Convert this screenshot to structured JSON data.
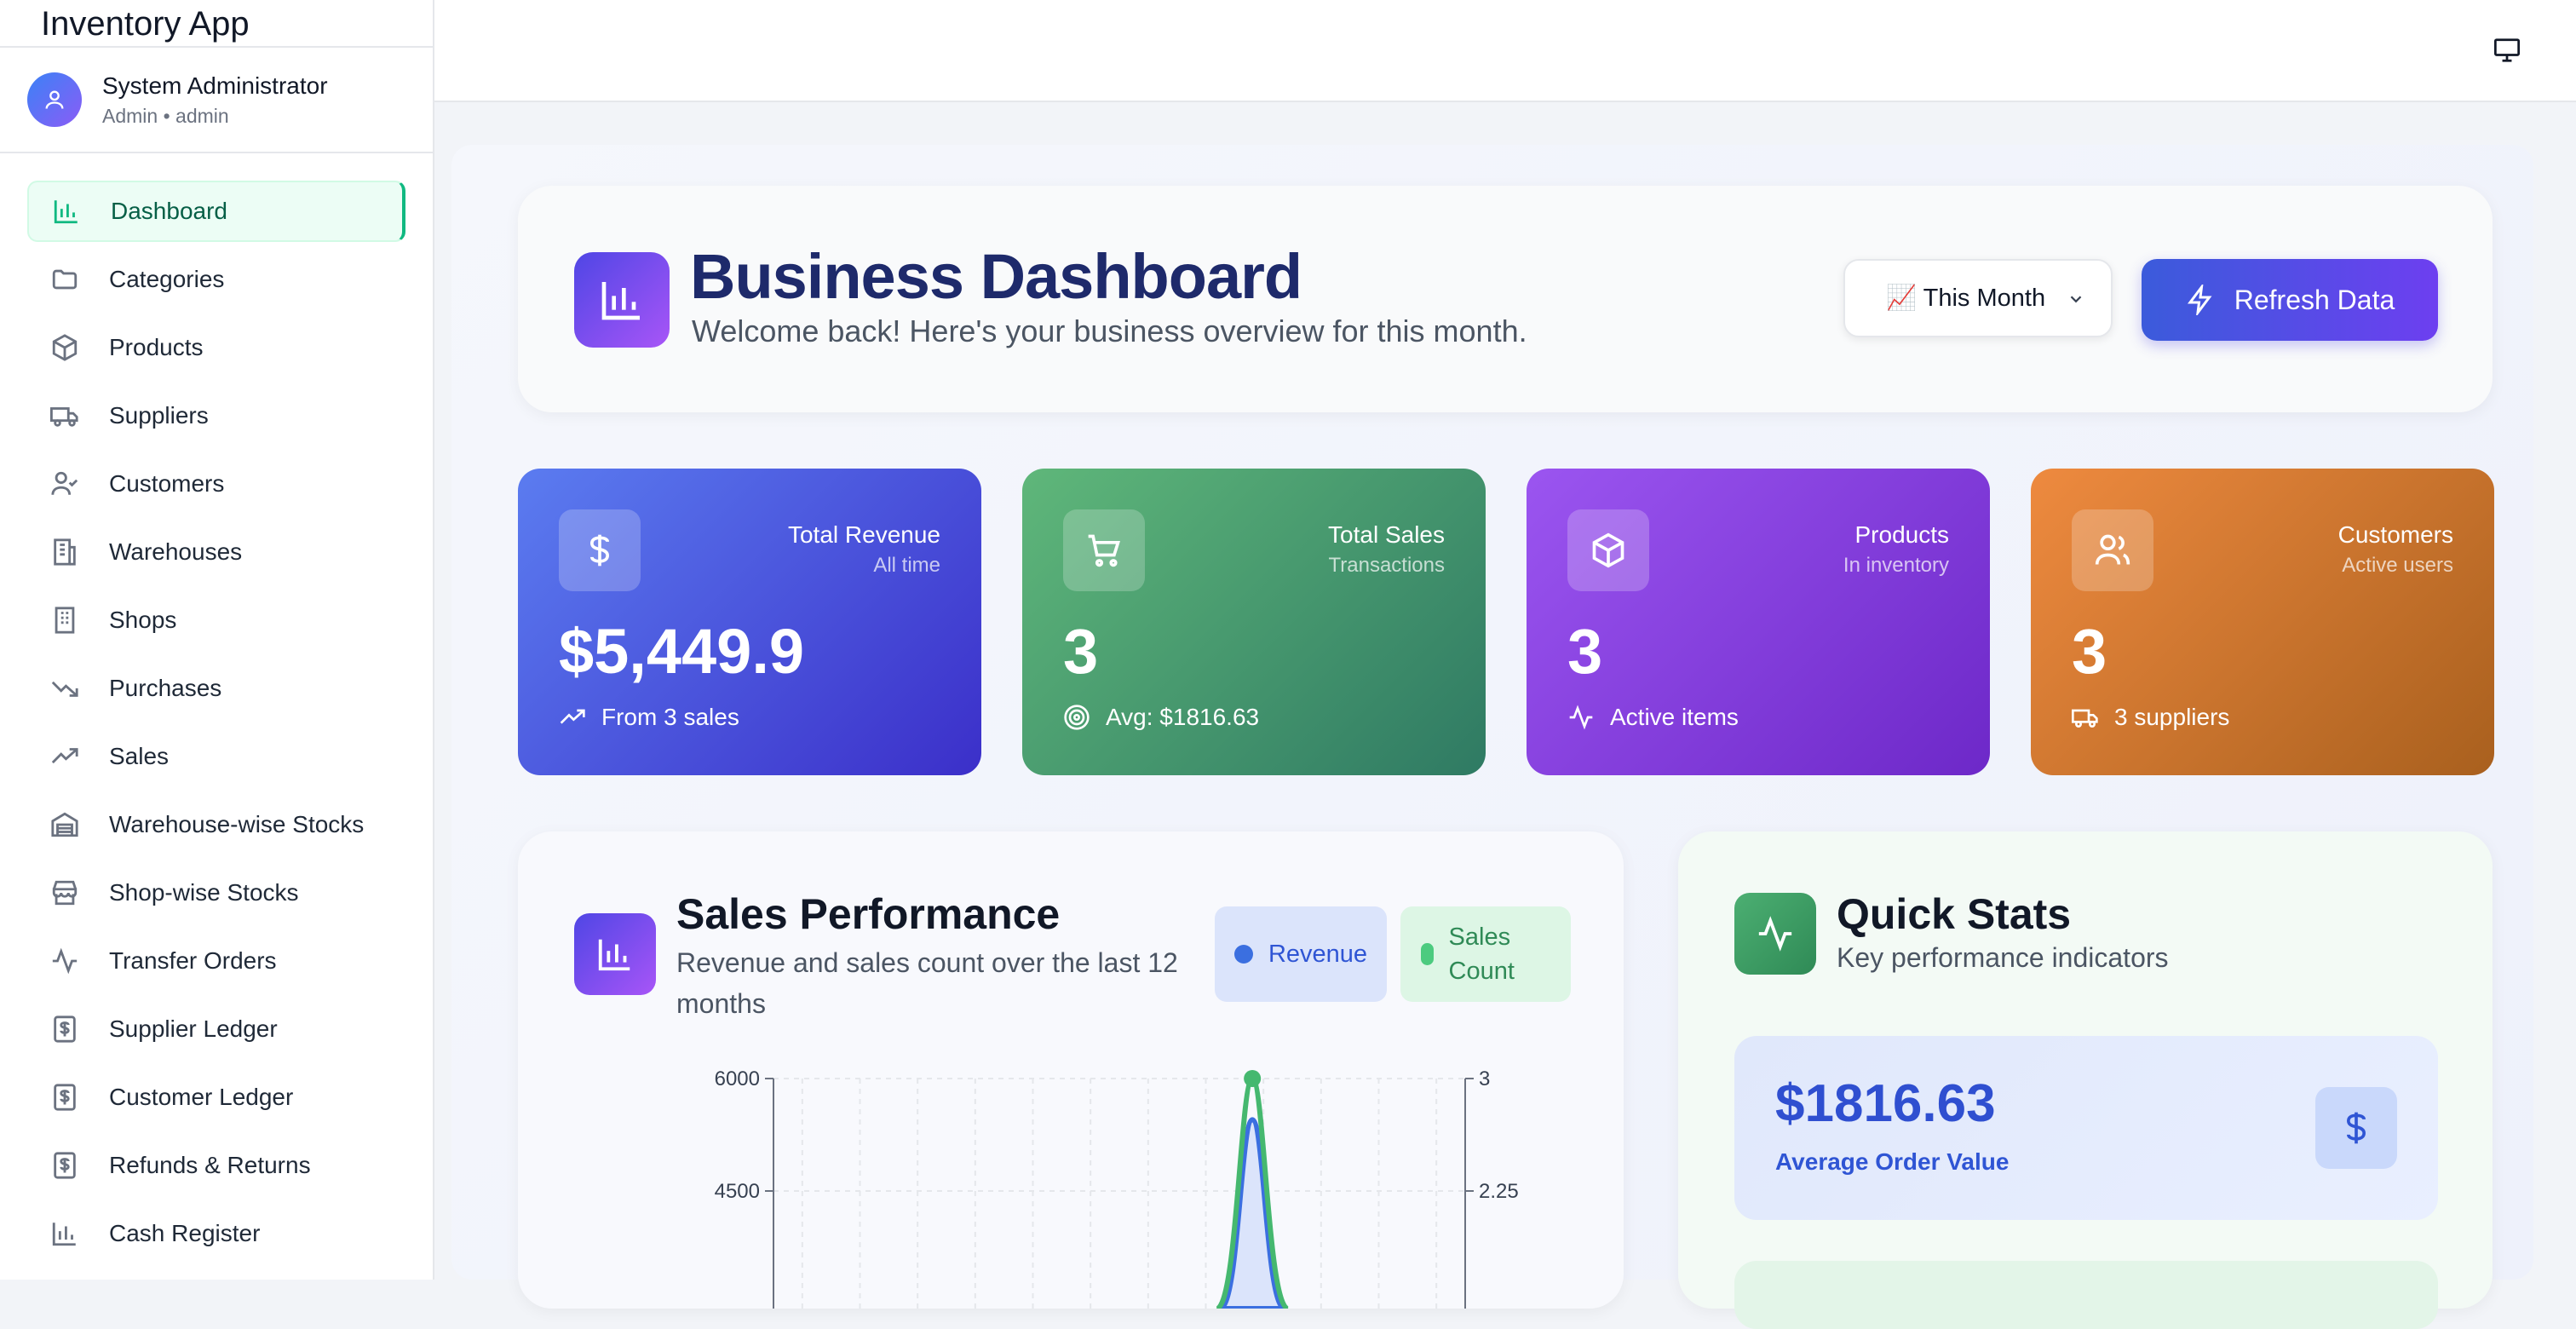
{
  "app": {
    "title": "Inventory App"
  },
  "user": {
    "name": "System Administrator",
    "role_line": "Admin • admin"
  },
  "sidebar": {
    "items": [
      {
        "label": "Dashboard",
        "icon": "bar-chart-icon",
        "active": true
      },
      {
        "label": "Categories",
        "icon": "folder-icon"
      },
      {
        "label": "Products",
        "icon": "box-icon"
      },
      {
        "label": "Suppliers",
        "icon": "truck-icon"
      },
      {
        "label": "Customers",
        "icon": "user-check-icon"
      },
      {
        "label": "Warehouses",
        "icon": "building-icon"
      },
      {
        "label": "Shops",
        "icon": "office-icon"
      },
      {
        "label": "Purchases",
        "icon": "trending-down-icon"
      },
      {
        "label": "Sales",
        "icon": "trending-up-icon"
      },
      {
        "label": "Warehouse-wise Stocks",
        "icon": "warehouse-icon"
      },
      {
        "label": "Shop-wise Stocks",
        "icon": "store-icon"
      },
      {
        "label": "Transfer Orders",
        "icon": "activity-icon"
      },
      {
        "label": "Supplier Ledger",
        "icon": "dollar-doc-icon"
      },
      {
        "label": "Customer Ledger",
        "icon": "dollar-doc-icon"
      },
      {
        "label": "Refunds & Returns",
        "icon": "dollar-doc-icon"
      },
      {
        "label": "Cash Register",
        "icon": "bar-chart-icon"
      }
    ]
  },
  "header": {
    "title": "Business Dashboard",
    "subtitle": "Welcome back! Here's your business overview for this month.",
    "period_select": "📈 This Month",
    "refresh_label": "Refresh Data"
  },
  "stats": [
    {
      "label": "Total Revenue",
      "sub": "All time",
      "value": "$5,449.9",
      "foot": "From 3 sales",
      "icon": "dollar-icon",
      "foot_icon": "trending-up-icon"
    },
    {
      "label": "Total Sales",
      "sub": "Transactions",
      "value": "3",
      "foot": "Avg: $1816.63",
      "icon": "cart-icon",
      "foot_icon": "target-icon"
    },
    {
      "label": "Products",
      "sub": "In inventory",
      "value": "3",
      "foot": "Active items",
      "icon": "box-icon",
      "foot_icon": "activity-icon"
    },
    {
      "label": "Customers",
      "sub": "Active users",
      "value": "3",
      "foot": "3 suppliers",
      "icon": "users-icon",
      "foot_icon": "truck-icon"
    }
  ],
  "performance": {
    "title": "Sales Performance",
    "subtitle": "Revenue and sales count over the last 12 months",
    "legend_revenue": "Revenue",
    "legend_sales": "Sales Count"
  },
  "chart_data": {
    "type": "area",
    "left_axis_ticks": [
      "6000",
      "4500"
    ],
    "right_axis_ticks": [
      "3",
      "2.25"
    ],
    "ylim_left": [
      0,
      6000
    ],
    "ylim_right": [
      0,
      3
    ],
    "series": [
      {
        "name": "Revenue",
        "axis": "left",
        "peak_value": 5449.9
      },
      {
        "name": "Sales Count",
        "axis": "right",
        "peak_value": 3
      }
    ],
    "colors": {
      "revenue": "#3b6fe0",
      "sales": "#45b86f"
    },
    "grid": true
  },
  "quick_stats": {
    "title": "Quick Stats",
    "subtitle": "Key performance indicators",
    "aov_value": "$1816.63",
    "aov_label": "Average Order Value"
  }
}
